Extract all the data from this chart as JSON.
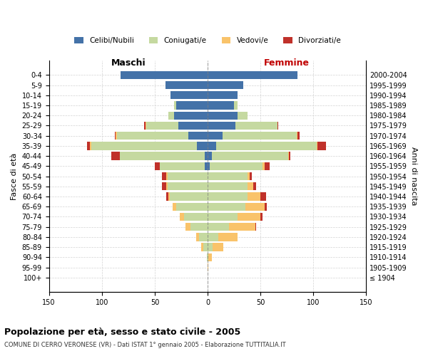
{
  "age_groups": [
    "100+",
    "95-99",
    "90-94",
    "85-89",
    "80-84",
    "75-79",
    "70-74",
    "65-69",
    "60-64",
    "55-59",
    "50-54",
    "45-49",
    "40-44",
    "35-39",
    "30-34",
    "25-29",
    "20-24",
    "15-19",
    "10-14",
    "5-9",
    "0-4"
  ],
  "birth_years": [
    "≤ 1904",
    "1905-1909",
    "1910-1914",
    "1915-1919",
    "1920-1924",
    "1925-1929",
    "1930-1934",
    "1935-1939",
    "1940-1944",
    "1945-1949",
    "1950-1954",
    "1955-1959",
    "1960-1964",
    "1965-1969",
    "1970-1974",
    "1975-1979",
    "1980-1984",
    "1985-1989",
    "1990-1994",
    "1995-1999",
    "2000-2004"
  ],
  "male_celibi": [
    0,
    0,
    0,
    0,
    0,
    0,
    0,
    0,
    0,
    0,
    0,
    3,
    3,
    10,
    18,
    28,
    32,
    30,
    35,
    40,
    82
  ],
  "male_coniugati": [
    0,
    0,
    1,
    4,
    8,
    16,
    22,
    30,
    36,
    38,
    38,
    42,
    80,
    100,
    68,
    30,
    5,
    2,
    0,
    0,
    0
  ],
  "male_vedovi": [
    0,
    0,
    0,
    2,
    3,
    5,
    4,
    3,
    1,
    1,
    1,
    0,
    0,
    1,
    1,
    1,
    0,
    0,
    0,
    0,
    0
  ],
  "male_divorziati": [
    0,
    0,
    0,
    0,
    0,
    0,
    0,
    0,
    2,
    4,
    4,
    5,
    8,
    3,
    1,
    1,
    0,
    0,
    0,
    0,
    0
  ],
  "female_celibi": [
    0,
    0,
    0,
    0,
    0,
    0,
    0,
    0,
    0,
    0,
    0,
    2,
    4,
    8,
    14,
    26,
    28,
    25,
    28,
    34,
    85
  ],
  "female_coniugati": [
    0,
    0,
    1,
    5,
    10,
    20,
    28,
    36,
    38,
    38,
    38,
    50,
    72,
    95,
    70,
    40,
    10,
    3,
    0,
    0,
    0
  ],
  "female_vedovi": [
    0,
    1,
    3,
    10,
    18,
    25,
    22,
    18,
    12,
    5,
    2,
    2,
    1,
    1,
    1,
    0,
    0,
    0,
    0,
    0,
    0
  ],
  "female_divorziati": [
    0,
    0,
    0,
    0,
    0,
    1,
    2,
    2,
    5,
    3,
    2,
    5,
    1,
    8,
    2,
    1,
    0,
    0,
    0,
    0,
    0
  ],
  "color_celibi": "#4472a8",
  "color_coniugati": "#c5d9a0",
  "color_vedovi": "#f9c36a",
  "color_divorziati": "#c0312a",
  "xlim": 150,
  "title": "Popolazione per età, sesso e stato civile - 2005",
  "subtitle": "COMUNE DI CERRO VERONESE (VR) - Dati ISTAT 1° gennaio 2005 - Elaborazione TUTTITALIA.IT",
  "ylabel_left": "Fasce di età",
  "ylabel_right": "Anni di nascita",
  "xlabel_male": "Maschi",
  "xlabel_female": "Femmine"
}
